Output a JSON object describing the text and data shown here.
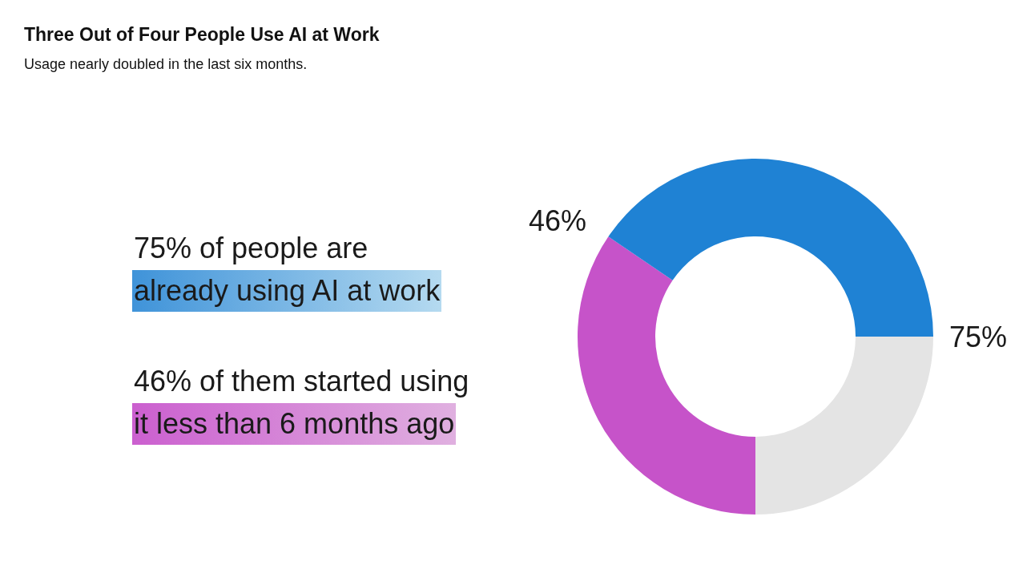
{
  "chart_data": {
    "type": "donut",
    "title": "Three Out of Four People Use AI at Work",
    "subtitle": "Usage nearly doubled in the last six months.",
    "categories": [
      null,
      null,
      null
    ],
    "values": [
      25,
      34.5,
      40.5
    ],
    "colors": [
      "#e4e4e4",
      "#c653c9",
      "#1f82d4"
    ],
    "annotations": [
      "75% of people are",
      "already using AI at work",
      "46% of them started using",
      "it less than 6 months ago",
      "75%",
      "46%"
    ]
  }
}
